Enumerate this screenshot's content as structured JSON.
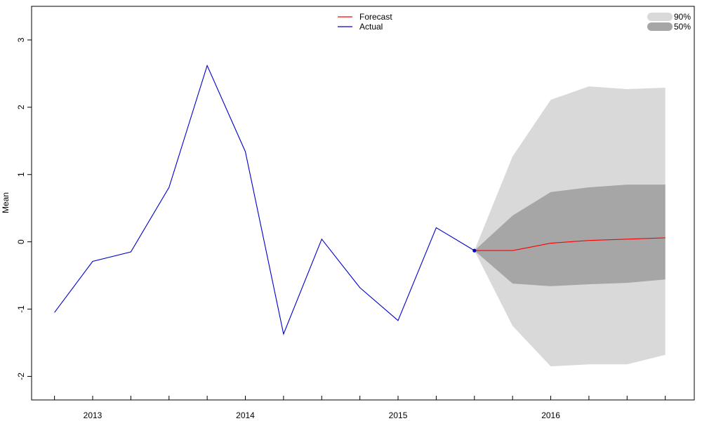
{
  "chart_data": {
    "type": "line",
    "ylabel": "Mean",
    "ylim": [
      -2.35,
      3.5
    ],
    "xlim": [
      2012.6,
      2016.94
    ],
    "grid": false,
    "y_ticks": [
      -2,
      -1,
      0,
      1,
      2,
      3
    ],
    "x_ticks": [
      2012.75,
      2013.0,
      2013.25,
      2013.5,
      2013.75,
      2014.0,
      2014.25,
      2014.5,
      2014.75,
      2015.0,
      2015.25,
      2015.5,
      2015.75,
      2016.0,
      2016.25,
      2016.5,
      2016.75
    ],
    "x_tick_labels": [
      {
        "x": 2013.0,
        "label": "2013"
      },
      {
        "x": 2014.0,
        "label": "2014"
      },
      {
        "x": 2015.0,
        "label": "2015"
      },
      {
        "x": 2016.0,
        "label": "2016"
      }
    ],
    "series": [
      {
        "name": "Actual",
        "color": "#0000CD",
        "x": [
          2012.75,
          2013.0,
          2013.25,
          2013.5,
          2013.75,
          2014.0,
          2014.25,
          2014.5,
          2014.75,
          2015.0,
          2015.25,
          2015.5
        ],
        "values": [
          -1.05,
          -0.29,
          -0.15,
          0.81,
          2.62,
          1.34,
          -1.37,
          0.04,
          -0.68,
          -1.17,
          0.21,
          -0.13
        ]
      },
      {
        "name": "Forecast",
        "color": "#FF0000",
        "x": [
          2015.5,
          2015.75,
          2016.0,
          2016.25,
          2016.5,
          2016.75
        ],
        "values": [
          -0.13,
          -0.13,
          -0.02,
          0.02,
          0.04,
          0.06
        ]
      }
    ],
    "last_point": {
      "x": 2015.5,
      "y": -0.13,
      "color": "#0000CD"
    },
    "bands": [
      {
        "name": "90%",
        "color": "#D9D9D9",
        "x": [
          2015.5,
          2015.75,
          2016.0,
          2016.25,
          2016.5,
          2016.75
        ],
        "lower": [
          -0.13,
          -1.25,
          -1.85,
          -1.82,
          -1.82,
          -1.68
        ],
        "upper": [
          -0.13,
          1.27,
          2.11,
          2.31,
          2.27,
          2.29
        ]
      },
      {
        "name": "50%",
        "color": "#A6A6A6",
        "x": [
          2015.5,
          2015.75,
          2016.0,
          2016.25,
          2016.5,
          2016.75
        ],
        "lower": [
          -0.13,
          -0.62,
          -0.66,
          -0.63,
          -0.61,
          -0.56
        ],
        "upper": [
          -0.13,
          0.39,
          0.74,
          0.81,
          0.85,
          0.85
        ]
      }
    ],
    "legends": [
      {
        "placement": "top-center",
        "entries": [
          "Forecast",
          "Actual"
        ]
      },
      {
        "placement": "top-right",
        "entries": [
          "90%",
          "50%"
        ]
      }
    ]
  }
}
